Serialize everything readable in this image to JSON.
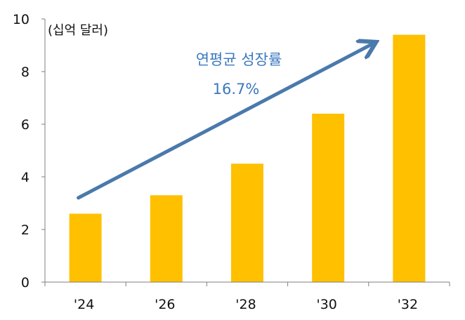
{
  "chart_data": {
    "type": "bar",
    "title": "",
    "xlabel": "",
    "ylabel": "",
    "unit_label": "(십억 달러)",
    "categories": [
      "'24",
      "'26",
      "'28",
      "'30",
      "'32"
    ],
    "values": [
      2.6,
      3.3,
      4.5,
      6.4,
      9.4
    ],
    "ylim": [
      0,
      10
    ],
    "yticks": [
      "0",
      "2",
      "4",
      "6",
      "8",
      "10"
    ],
    "grid": false,
    "legend": "none",
    "annotation": {
      "line1": "연평균 성장률",
      "line2": "16.7%",
      "trend_from": {
        "category": "'24",
        "value": 3.15
      },
      "trend_to": {
        "category": "'32",
        "value": 9.4
      }
    },
    "colors": {
      "bar": "#FFC000",
      "arrow": "#4A79AC",
      "annotation_text": "#3C78BE",
      "axis": "#7F7F7F"
    }
  }
}
